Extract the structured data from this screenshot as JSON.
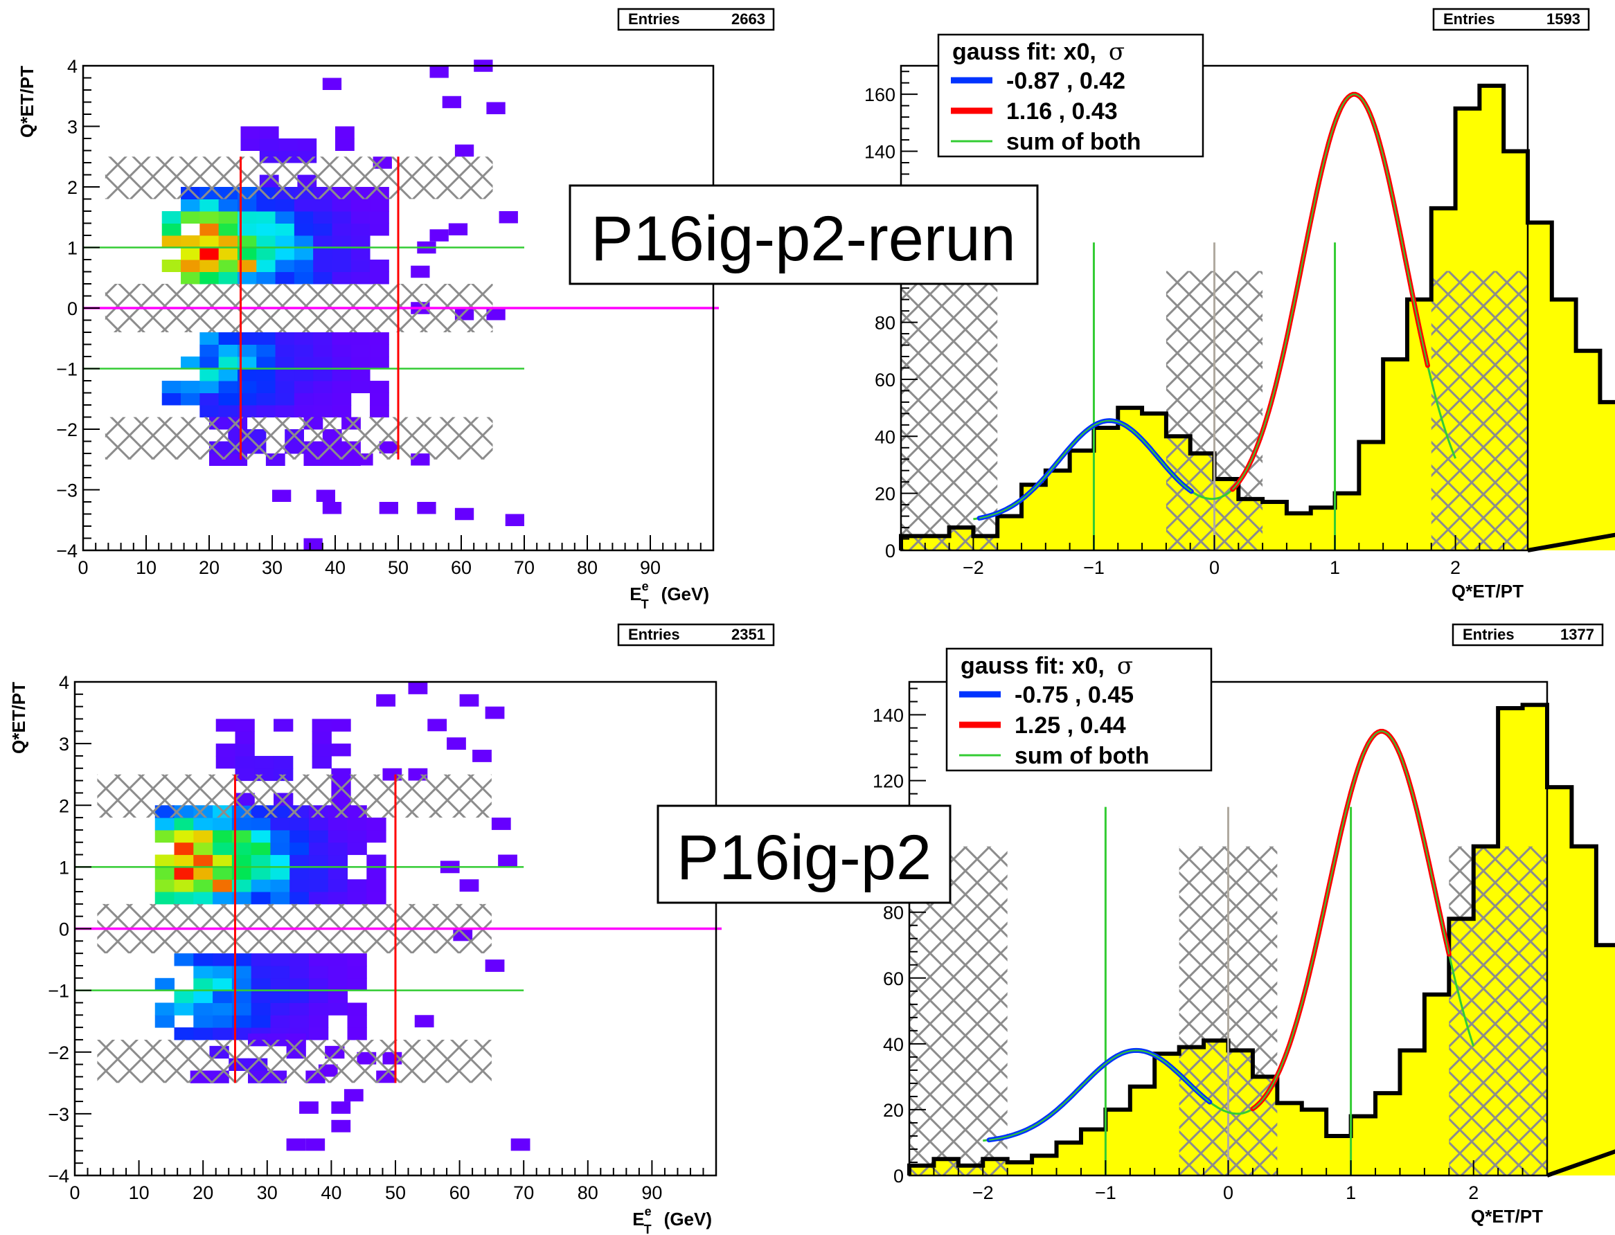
{
  "labels": {
    "release_top": "P16ig-p2-rerun",
    "release_bottom": "P16ig-p2"
  },
  "chart_data": [
    {
      "type": "heatmap",
      "id": "top-left",
      "xlabel_main": "E",
      "xlabel_sup": "e",
      "xlabel_sub": "T",
      "xlabel_unit": "(GeV)",
      "ylabel": "Q*ET/PT",
      "xlim": [
        0,
        100
      ],
      "ylim": [
        -4,
        4
      ],
      "xticks": [
        "0",
        "10",
        "20",
        "30",
        "40",
        "50",
        "60",
        "70",
        "80",
        "90"
      ],
      "yticks": [
        "4",
        "3",
        "2",
        "1",
        "0",
        "−1",
        "−2",
        "−3",
        "−4"
      ],
      "stats": {
        "label": "Entries",
        "value": "2663"
      },
      "x_bin_width": 3,
      "y_bin_width": 0.2,
      "density_bands": [
        {
          "y": [
            0.4,
            2.0
          ],
          "x": [
            12.5,
            48.5
          ],
          "peak_x": 17.5,
          "peak_y": 0.95,
          "max": 1.0
        },
        {
          "y": [
            -1.8,
            -0.4
          ],
          "x": [
            12.5,
            46.0
          ],
          "peak_x": 17.5,
          "peak_y": -0.9,
          "max": 0.5
        },
        {
          "y": [
            2.0,
            3.0
          ],
          "x": [
            25,
            43
          ],
          "peak_x": 30,
          "peak_y": 2.3,
          "max": 0.08
        },
        {
          "y": [
            -2.6,
            -1.8
          ],
          "x": [
            20,
            42
          ],
          "peak_x": 25,
          "peak_y": -2.1,
          "max": 0.08
        }
      ],
      "sparse_cells": [
        [
          55,
          3.8
        ],
        [
          57,
          3.3
        ],
        [
          62,
          3.9
        ],
        [
          64,
          3.2
        ],
        [
          38,
          3.6
        ],
        [
          59,
          2.5
        ],
        [
          66,
          1.4
        ],
        [
          64,
          -0.2
        ],
        [
          52,
          -0.1
        ],
        [
          52,
          -2.6
        ],
        [
          43,
          -2.6
        ],
        [
          37,
          -3.2
        ],
        [
          30,
          -3.2
        ],
        [
          38,
          -3.4
        ],
        [
          35,
          -4.0
        ],
        [
          47,
          -3.4
        ],
        [
          53,
          -3.4
        ],
        [
          59,
          -3.5
        ],
        [
          67,
          -3.6
        ],
        [
          58,
          1.2
        ],
        [
          55,
          1.1
        ],
        [
          52,
          0.5
        ],
        [
          53,
          0.9
        ],
        [
          59,
          -0.2
        ],
        [
          47,
          -2.4
        ],
        [
          46,
          2.3
        ]
      ],
      "hatch_bands": [
        [
          1.8,
          2.5
        ],
        [
          -0.4,
          0.4
        ],
        [
          -2.5,
          -1.8
        ]
      ],
      "hatch_x": [
        3.5,
        65
      ],
      "hlines": [
        {
          "y": 1,
          "color": "#33cc33"
        },
        {
          "y": -1,
          "color": "#33cc33"
        },
        {
          "y": 0,
          "color": "#ff00ff"
        }
      ],
      "vlines": [
        {
          "x": 25,
          "color": "#ff0000"
        },
        {
          "x": 50,
          "color": "#ff0000"
        }
      ],
      "colors": {
        "low": "#6600ff",
        "high": "#ff0000"
      }
    },
    {
      "type": "bar",
      "id": "top-right",
      "xlabel": "Q*ET/PT",
      "ylabel": "",
      "xlim": [
        -2.6,
        2.6
      ],
      "ylim": [
        0,
        170
      ],
      "xticks": [
        "−2",
        "−1",
        "0",
        "1",
        "2"
      ],
      "yticks": [
        "0",
        "20",
        "40",
        "60",
        "80",
        "100",
        "120",
        "140",
        "160"
      ],
      "stats": {
        "label": "Entries",
        "value": "1593"
      },
      "bin_width": 0.2,
      "values": [
        5,
        5,
        8,
        5,
        12,
        23,
        28,
        35,
        43,
        50,
        48,
        40,
        34,
        25,
        18,
        17,
        13,
        15,
        20,
        38,
        67,
        88,
        120,
        155,
        163,
        140,
        115,
        88,
        70,
        52,
        43,
        42,
        32,
        12
      ],
      "legend": {
        "title_prefix": "gauss fit: x0,",
        "title_sym": "σ",
        "entries": [
          "-0.87 , 0.42",
          "1.16 , 0.43",
          "sum of both"
        ],
        "colors": [
          "#0033ff",
          "#ff0000",
          "#33cc33"
        ]
      },
      "fits": [
        {
          "mu": -0.87,
          "sigma": 0.42,
          "amp": 35.5,
          "base": 10,
          "x0": -1.95,
          "x1": -0.18,
          "color": "#0033ff"
        },
        {
          "mu": 1.16,
          "sigma": 0.43,
          "amp": 150,
          "base": 10,
          "x0": 0.15,
          "x1": 1.78,
          "color": "#ff0000"
        }
      ],
      "sum_fit": {
        "x0": -2.0,
        "x1": 2.0,
        "color": "#33cc33"
      },
      "hatch_regions": [
        [
          -2.6,
          -1.8
        ],
        [
          -0.4,
          0.4
        ],
        [
          1.8,
          2.6
        ]
      ],
      "hatch_top": 98,
      "vlines": [
        {
          "x": -1,
          "y1": 108,
          "color": "#33cc33"
        },
        {
          "x": 0,
          "y1": 108,
          "color": "#b0aaa0"
        },
        {
          "x": 1,
          "y1": 108,
          "color": "#33cc33"
        }
      ],
      "colors": {
        "fill": "#ffff00",
        "line": "#000000"
      }
    },
    {
      "type": "heatmap",
      "id": "bottom-left",
      "xlabel_main": "E",
      "xlabel_sup": "e",
      "xlabel_sub": "T",
      "xlabel_unit": "(GeV)",
      "ylabel": "Q*ET/PT",
      "xlim": [
        0,
        100
      ],
      "ylim": [
        -4,
        4
      ],
      "xticks": [
        "0",
        "10",
        "20",
        "30",
        "40",
        "50",
        "60",
        "70",
        "80",
        "90"
      ],
      "yticks": [
        "4",
        "3",
        "2",
        "1",
        "0",
        "−1",
        "−2",
        "−3",
        "−4"
      ],
      "stats": {
        "label": "Entries",
        "value": "2351"
      },
      "x_bin_width": 3,
      "y_bin_width": 0.2,
      "density_bands": [
        {
          "y": [
            0.4,
            2.0
          ],
          "x": [
            12.5,
            46.0
          ],
          "peak_x": 17.5,
          "peak_y": 1.05,
          "max": 1.0
        },
        {
          "y": [
            -1.8,
            -0.4
          ],
          "x": [
            12.5,
            44.0
          ],
          "peak_x": 17.5,
          "peak_y": -1.0,
          "max": 0.5
        },
        {
          "y": [
            2.0,
            3.3
          ],
          "x": [
            22,
            43
          ],
          "peak_x": 30,
          "peak_y": 2.5,
          "max": 0.08
        },
        {
          "y": [
            -2.5,
            -1.8
          ],
          "x": [
            18,
            40
          ],
          "peak_x": 25,
          "peak_y": -2.1,
          "max": 0.08
        }
      ],
      "sparse_cells": [
        [
          47,
          3.6
        ],
        [
          52,
          3.8
        ],
        [
          60,
          3.6
        ],
        [
          64,
          3.4
        ],
        [
          55,
          3.2
        ],
        [
          58,
          2.9
        ],
        [
          62,
          2.7
        ],
        [
          48,
          2.4
        ],
        [
          52,
          2.4
        ],
        [
          65,
          1.6
        ],
        [
          66,
          1.0
        ],
        [
          64,
          -0.7
        ],
        [
          53,
          -1.6
        ],
        [
          48,
          -2.2
        ],
        [
          44,
          -2.2
        ],
        [
          38,
          -2.4
        ],
        [
          36,
          -3.6
        ],
        [
          40,
          -3.0
        ],
        [
          40,
          -3.3
        ],
        [
          33,
          -3.6
        ],
        [
          35,
          -3.0
        ],
        [
          68,
          -3.6
        ],
        [
          57,
          0.9
        ],
        [
          60,
          0.6
        ],
        [
          59,
          -0.2
        ],
        [
          47,
          -2.5
        ],
        [
          42,
          -2.8
        ]
      ],
      "hatch_bands": [
        [
          1.8,
          2.5
        ],
        [
          -0.4,
          0.4
        ],
        [
          -2.5,
          -1.8
        ]
      ],
      "hatch_x": [
        3.5,
        65
      ],
      "hlines": [
        {
          "y": 1,
          "color": "#33cc33"
        },
        {
          "y": -1,
          "color": "#33cc33"
        },
        {
          "y": 0,
          "color": "#ff00ff"
        }
      ],
      "vlines": [
        {
          "x": 25,
          "color": "#ff0000"
        },
        {
          "x": 50,
          "color": "#ff0000"
        }
      ],
      "colors": {
        "low": "#6600ff",
        "high": "#ff0000"
      }
    },
    {
      "type": "bar",
      "id": "bottom-right",
      "xlabel": "Q*ET/PT",
      "ylabel": "",
      "xlim": [
        -2.6,
        2.6
      ],
      "ylim": [
        0,
        150
      ],
      "xticks": [
        "−2",
        "−1",
        "0",
        "1",
        "2"
      ],
      "yticks": [
        "0",
        "20",
        "40",
        "60",
        "80",
        "100",
        "120",
        "140"
      ],
      "stats": {
        "label": "Entries",
        "value": "1377"
      },
      "bin_width": 0.2,
      "values": [
        3,
        5,
        3,
        5,
        4,
        6,
        10,
        14,
        20,
        27,
        37,
        39,
        41,
        38,
        30,
        22,
        20,
        12,
        18,
        25,
        38,
        55,
        78,
        100,
        142,
        143,
        118,
        100,
        70,
        45,
        38,
        48,
        27,
        21
      ],
      "legend": {
        "title_prefix": "gauss fit: x0,",
        "title_sym": "σ",
        "entries": [
          "-0.75 , 0.45",
          "1.25 , 0.44",
          "sum of both"
        ],
        "colors": [
          "#0033ff",
          "#ff0000",
          "#33cc33"
        ]
      },
      "fits": [
        {
          "mu": -0.75,
          "sigma": 0.45,
          "amp": 28,
          "base": 10,
          "x0": -1.95,
          "x1": -0.15,
          "color": "#0033ff"
        },
        {
          "mu": 1.25,
          "sigma": 0.44,
          "amp": 125,
          "base": 10,
          "x0": 0.2,
          "x1": 1.8,
          "color": "#ff0000"
        }
      ],
      "sum_fit": {
        "x0": -2.0,
        "x1": 2.0,
        "color": "#33cc33"
      },
      "hatch_regions": [
        [
          -2.6,
          -1.8
        ],
        [
          -0.4,
          0.4
        ],
        [
          1.8,
          2.6
        ]
      ],
      "hatch_top": 100,
      "vlines": [
        {
          "x": -1,
          "y1": 112,
          "color": "#33cc33"
        },
        {
          "x": 0,
          "y1": 112,
          "color": "#b0aaa0"
        },
        {
          "x": 1,
          "y1": 112,
          "color": "#33cc33"
        }
      ],
      "colors": {
        "fill": "#ffff00",
        "line": "#000000"
      }
    }
  ]
}
